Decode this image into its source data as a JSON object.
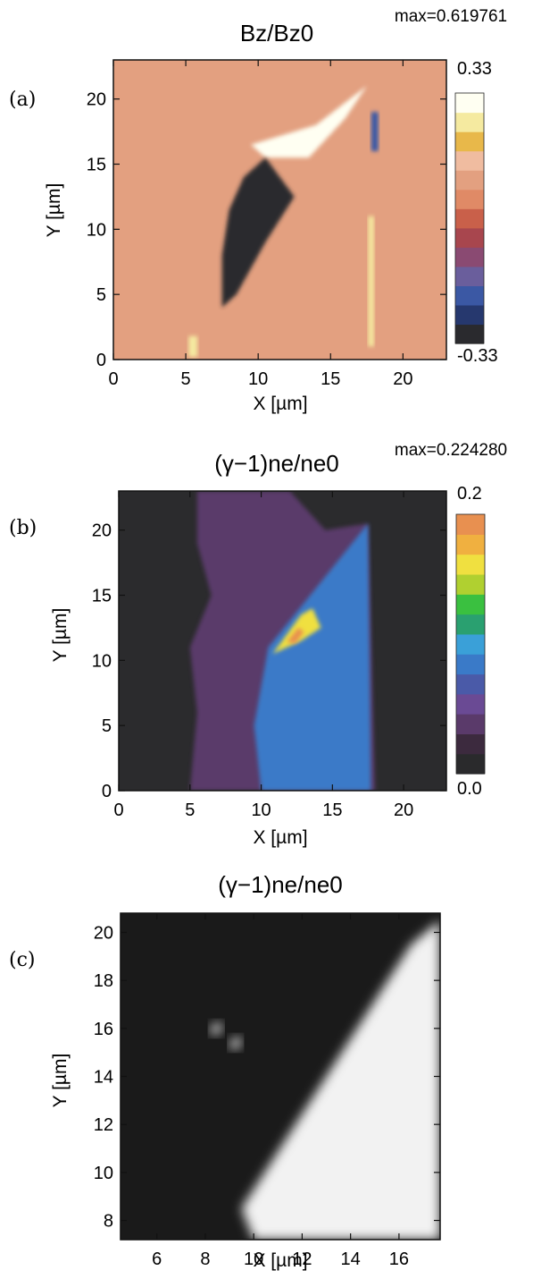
{
  "chart_data": [
    {
      "type": "heatmap",
      "panel_label": "(a)",
      "title": "Bz/Bz0",
      "annotation": "max=0.619761",
      "xlabel": "X [µm]",
      "ylabel": "Y [µm]",
      "xlim": [
        0,
        23
      ],
      "ylim": [
        0,
        23
      ],
      "xticks": [
        0,
        5,
        10,
        15,
        20
      ],
      "yticks": [
        0,
        5,
        10,
        15,
        20
      ],
      "colorbar": {
        "max_label": "0.33",
        "min_label": "-0.33",
        "range": [
          -0.33,
          0.33
        ]
      },
      "colorscale": [
        "#2a2a2e",
        "#26386e",
        "#3b58a4",
        "#6a5e9c",
        "#8a4a72",
        "#a8464e",
        "#c9604a",
        "#e08a66",
        "#e3a080",
        "#f0bca0",
        "#e8b84a",
        "#f5eaa0",
        "#fffff2"
      ],
      "features": [
        {
          "name": "positive lobe",
          "value": 0.33,
          "points": [
            [
              9.5,
              16.5
            ],
            [
              14,
              18
            ],
            [
              17.5,
              21
            ],
            [
              16,
              18.5
            ],
            [
              13.5,
              15.5
            ],
            [
              10.5,
              15.5
            ]
          ]
        },
        {
          "name": "negative lobe",
          "value": -0.33,
          "points": [
            [
              10.5,
              15.5
            ],
            [
              12.5,
              12.5
            ],
            [
              10.5,
              9
            ],
            [
              8.5,
              5
            ],
            [
              7.5,
              4
            ],
            [
              7.5,
              8
            ],
            [
              8,
              11.5
            ],
            [
              9,
              14
            ]
          ]
        },
        {
          "name": "negative strip",
          "value": -0.2,
          "points": [
            [
              17.8,
              19
            ],
            [
              18.3,
              19
            ],
            [
              18.3,
              16
            ],
            [
              17.8,
              16
            ]
          ]
        },
        {
          "name": "positive strip",
          "value": 0.3,
          "points": [
            [
              17.6,
              11
            ],
            [
              18,
              11
            ],
            [
              18,
              1
            ],
            [
              17.6,
              1
            ]
          ]
        },
        {
          "name": "positive spot",
          "value": 0.3,
          "points": [
            [
              5.2,
              1.8
            ],
            [
              5.8,
              1.8
            ],
            [
              5.8,
              0.2
            ],
            [
              5.2,
              0.2
            ]
          ]
        }
      ]
    },
    {
      "type": "heatmap",
      "panel_label": "(b)",
      "title": "(γ−1)ne/ne0",
      "annotation": "max=0.224280",
      "xlabel": "X [µm]",
      "ylabel": "Y [µm]",
      "xlim": [
        0,
        23
      ],
      "ylim": [
        0,
        23
      ],
      "xticks": [
        0,
        5,
        10,
        15,
        20
      ],
      "yticks": [
        0,
        5,
        10,
        15,
        20
      ],
      "colorbar": {
        "max_label": "0.2",
        "min_label": "0.0",
        "range": [
          0.0,
          0.2
        ]
      },
      "colorscale": [
        "#2a2a2c",
        "#3c2a3e",
        "#5a3a6a",
        "#6a4a94",
        "#4a5aa8",
        "#3a7ac8",
        "#3aa0d8",
        "#2aa070",
        "#3ac040",
        "#b0d030",
        "#f0e040",
        "#f0b040",
        "#e89050"
      ],
      "features": [
        {
          "name": "purple region",
          "value": 0.03,
          "points": [
            [
              5.5,
              23
            ],
            [
              12,
              23
            ],
            [
              14.5,
              20
            ],
            [
              17.5,
              20.5
            ],
            [
              18,
              0
            ],
            [
              5,
              0
            ],
            [
              5.5,
              6
            ],
            [
              5,
              11
            ],
            [
              6.5,
              15
            ],
            [
              5.5,
              19
            ]
          ]
        },
        {
          "name": "blue region",
          "value": 0.08,
          "points": [
            [
              10.5,
              11
            ],
            [
              17.5,
              20.5
            ],
            [
              17.7,
              0
            ],
            [
              10,
              0
            ],
            [
              9.5,
              5
            ]
          ]
        },
        {
          "name": "green filament",
          "value": 0.17,
          "points": [
            [
              10.8,
              10.5
            ],
            [
              12.8,
              13.5
            ],
            [
              13.6,
              14
            ],
            [
              14.2,
              12.5
            ],
            [
              12.8,
              11.5
            ]
          ]
        },
        {
          "name": "red core",
          "value": 0.2,
          "points": [
            [
              11.8,
              11.4
            ],
            [
              12.6,
              12.5
            ],
            [
              13,
              12.2
            ],
            [
              12.4,
              11.3
            ]
          ]
        }
      ]
    },
    {
      "type": "heatmap",
      "panel_label": "(c)",
      "title": "(γ−1)ne/ne0",
      "xlabel": "X [µm]",
      "ylabel": "Y [µm]",
      "xlim": [
        4.5,
        17.7
      ],
      "ylim": [
        7.2,
        20.8
      ],
      "xticks": [
        6,
        8,
        10,
        12,
        14,
        16
      ],
      "yticks": [
        8,
        10,
        12,
        14,
        16,
        18,
        20
      ],
      "colorscale": [
        "#111111",
        "#ffffff"
      ],
      "features": [
        {
          "name": "bright triangle",
          "value": 0.95,
          "points": [
            [
              9.5,
              8.5
            ],
            [
              16.5,
              19.5
            ],
            [
              17.7,
              20.5
            ],
            [
              17.7,
              7.2
            ],
            [
              10,
              7.2
            ]
          ]
        },
        {
          "name": "bright spot 1",
          "value": 0.9,
          "points": [
            [
              8.2,
              16
            ],
            [
              8.6,
              16.3
            ],
            [
              8.7,
              15.9
            ],
            [
              8.3,
              15.7
            ]
          ]
        },
        {
          "name": "bright spot 2",
          "value": 0.9,
          "points": [
            [
              9,
              15.4
            ],
            [
              9.4,
              15.7
            ],
            [
              9.5,
              15.3
            ],
            [
              9.1,
              15.1
            ]
          ]
        }
      ]
    }
  ]
}
